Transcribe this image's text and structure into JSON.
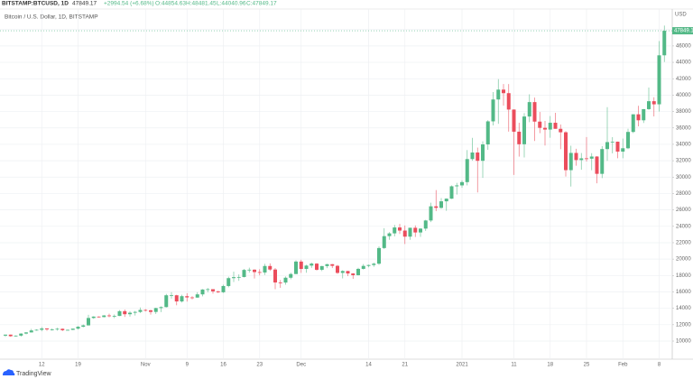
{
  "chart_data": {
    "type": "candlestick",
    "title": "BITSTAMP:BTCUSD, 1D",
    "last_price": "47849.17",
    "change": "+2994.54 (+6.68%)",
    "header_values": [
      "O:44854.63",
      "H:48481.45",
      "L:44040.96",
      "C:47849.17"
    ],
    "subtitle": "Bitcoin / U.S. Dollar, 1D, BITSTAMP",
    "y_axis_label": "USD",
    "logo": "TradingView",
    "up_color": "#53b987",
    "down_color": "#eb4d5c",
    "grid": true,
    "ylim": [
      7800,
      50500
    ],
    "yticks": [
      10000,
      12000,
      14000,
      16000,
      18000,
      20000,
      22000,
      24000,
      26000,
      28000,
      30000,
      32000,
      34000,
      36000,
      38000,
      40000,
      42000,
      44000,
      46000,
      48000
    ],
    "categories": [
      null,
      null,
      null,
      null,
      null,
      null,
      null,
      "12",
      null,
      null,
      null,
      null,
      null,
      null,
      "19",
      null,
      null,
      null,
      null,
      null,
      null,
      null,
      null,
      null,
      null,
      null,
      null,
      "Nov",
      null,
      null,
      null,
      null,
      null,
      null,
      null,
      "9",
      null,
      null,
      null,
      null,
      null,
      null,
      "16",
      null,
      null,
      null,
      null,
      null,
      null,
      "23",
      null,
      null,
      null,
      null,
      null,
      null,
      null,
      "Dec",
      null,
      null,
      null,
      null,
      null,
      null,
      null,
      null,
      null,
      null,
      null,
      null,
      "14",
      null,
      null,
      null,
      null,
      null,
      null,
      "21",
      null,
      null,
      null,
      null,
      null,
      null,
      null,
      null,
      null,
      null,
      "2021",
      null,
      null,
      null,
      null,
      null,
      null,
      null,
      null,
      null,
      "11",
      null,
      null,
      null,
      null,
      null,
      null,
      "18",
      null,
      null,
      null,
      null,
      null,
      null,
      "25",
      null,
      null,
      null,
      null,
      null,
      null,
      "Feb",
      null,
      null,
      null,
      null,
      null,
      null,
      "8",
      null
    ],
    "open": [
      10670,
      10790,
      10600,
      10670,
      10920,
      11060,
      11300,
      11380,
      11540,
      11430,
      11430,
      11500,
      11330,
      11370,
      11520,
      11750,
      11920,
      12820,
      12990,
      12930,
      13130,
      13040,
      13070,
      13650,
      13280,
      13460,
      13560,
      13800,
      13760,
      13560,
      14030,
      14150,
      15590,
      15590,
      14840,
      15480,
      15330,
      15310,
      15700,
      16290,
      16330,
      16070,
      15960,
      16720,
      17680,
      17800,
      17820,
      18680,
      18710,
      18420,
      18370,
      19160,
      18730,
      17150,
      17140,
      17730,
      18180,
      19700,
      18800,
      19210,
      19450,
      18700,
      19150,
      19380,
      19180,
      18320,
      18550,
      18250,
      18040,
      18810,
      19170,
      19280,
      19440,
      21350,
      22800,
      23140,
      23860,
      23480,
      22740,
      23820,
      23250,
      23720,
      24710,
      26440,
      26250,
      27050,
      27370,
      28880,
      28990,
      29390,
      32200,
      33000,
      31990,
      33990,
      36800,
      39470,
      40670,
      40240,
      38240,
      35540,
      34010,
      37390,
      39150,
      36770,
      36010,
      35800,
      36630,
      35890,
      35470,
      30850,
      32950,
      32080,
      32290,
      32250,
      32510,
      30400,
      33420,
      34270,
      34320,
      33110,
      33520,
      35510,
      37660,
      36930,
      38290,
      39260,
      38880,
      44854.63
    ],
    "high": [
      10800,
      10800,
      10690,
      10960,
      11100,
      11490,
      11440,
      11720,
      11560,
      11550,
      11630,
      11540,
      11420,
      11490,
      11830,
      12030,
      13200,
      13030,
      13020,
      13170,
      13350,
      13250,
      13790,
      13860,
      13640,
      13680,
      14100,
      13900,
      13820,
      14070,
      14240,
      15760,
      15970,
      15650,
      15650,
      15840,
      15480,
      15960,
      16340,
      16480,
      16330,
      16130,
      16880,
      17860,
      18480,
      18140,
      18800,
      18960,
      18760,
      18770,
      19420,
      19480,
      18920,
      17450,
      17890,
      18340,
      19850,
      19920,
      19310,
      19570,
      19500,
      19170,
      19420,
      19400,
      19290,
      18640,
      18560,
      18290,
      18940,
      19400,
      19330,
      19570,
      21560,
      23770,
      23290,
      24170,
      24300,
      24100,
      23830,
      24110,
      23780,
      24790,
      26880,
      28420,
      27440,
      27400,
      28990,
      29300,
      29600,
      33300,
      34790,
      33600,
      34360,
      36940,
      40370,
      41950,
      41350,
      41350,
      38260,
      36630,
      37800,
      40100,
      39700,
      37950,
      36850,
      37450,
      37850,
      36420,
      35600,
      33830,
      33460,
      32940,
      34880,
      32920,
      32560,
      33780,
      38530,
      34880,
      34330,
      34700,
      35900,
      37660,
      38700,
      38300,
      40930,
      39740,
      46600,
      48481.45
    ],
    "low": [
      10530,
      10530,
      10550,
      10540,
      10830,
      11050,
      11270,
      11200,
      11250,
      11280,
      11280,
      11220,
      11300,
      11350,
      11420,
      11690,
      11900,
      12720,
      12880,
      12900,
      12910,
      12800,
      13050,
      12950,
      12980,
      13120,
      13430,
      13620,
      13240,
      13310,
      13540,
      14100,
      15190,
      14370,
      14710,
      14820,
      15090,
      15290,
      15460,
      15960,
      15790,
      15870,
      15880,
      16560,
      17210,
      17350,
      17760,
      18360,
      17630,
      18020,
      18060,
      18560,
      16330,
      16500,
      16880,
      17540,
      18180,
      18320,
      18340,
      18930,
      18600,
      18540,
      18900,
      18910,
      18200,
      17650,
      17920,
      17590,
      18010,
      18730,
      19000,
      19060,
      19300,
      21230,
      22350,
      22770,
      23070,
      21840,
      22360,
      22700,
      22710,
      23440,
      24510,
      25850,
      26140,
      25890,
      27330,
      27870,
      28700,
      28990,
      32000,
      28130,
      29900,
      33330,
      36300,
      36500,
      38720,
      35550,
      30260,
      32500,
      32400,
      36700,
      34410,
      35360,
      33850,
      34800,
      35900,
      33400,
      30070,
      28850,
      31390,
      30900,
      31900,
      30840,
      29240,
      29880,
      31990,
      32900,
      32300,
      32300,
      33420,
      35370,
      36200,
      36600,
      38200,
      37400,
      37990,
      44040.96
    ],
    "close": [
      10790,
      10600,
      10670,
      10920,
      11060,
      11300,
      11380,
      11540,
      11430,
      11430,
      11500,
      11330,
      11370,
      11520,
      11750,
      11920,
      12820,
      12990,
      12930,
      13130,
      13040,
      13070,
      13650,
      13280,
      13460,
      13560,
      13800,
      13760,
      13560,
      14030,
      14150,
      15590,
      15590,
      14840,
      15480,
      15330,
      15310,
      15700,
      16290,
      16330,
      16070,
      15960,
      16720,
      17680,
      17800,
      17820,
      18680,
      18710,
      18420,
      18370,
      19160,
      18730,
      17150,
      17140,
      17730,
      18180,
      19700,
      18800,
      19210,
      19450,
      18700,
      19150,
      19380,
      19180,
      18320,
      18550,
      18250,
      18040,
      18810,
      19170,
      19280,
      19440,
      21350,
      22800,
      23140,
      23860,
      23480,
      22740,
      23820,
      23250,
      23720,
      24710,
      26440,
      26250,
      27050,
      27370,
      28880,
      28990,
      29390,
      32200,
      33000,
      31990,
      33990,
      36800,
      39470,
      40670,
      40240,
      38240,
      35540,
      34010,
      37390,
      39150,
      36770,
      36010,
      35800,
      36630,
      35890,
      35470,
      30850,
      32950,
      32080,
      32290,
      32250,
      32510,
      30400,
      33420,
      34270,
      34320,
      33110,
      33520,
      35510,
      37660,
      36930,
      38290,
      39260,
      38880,
      44854.63,
      47849.17
    ]
  }
}
